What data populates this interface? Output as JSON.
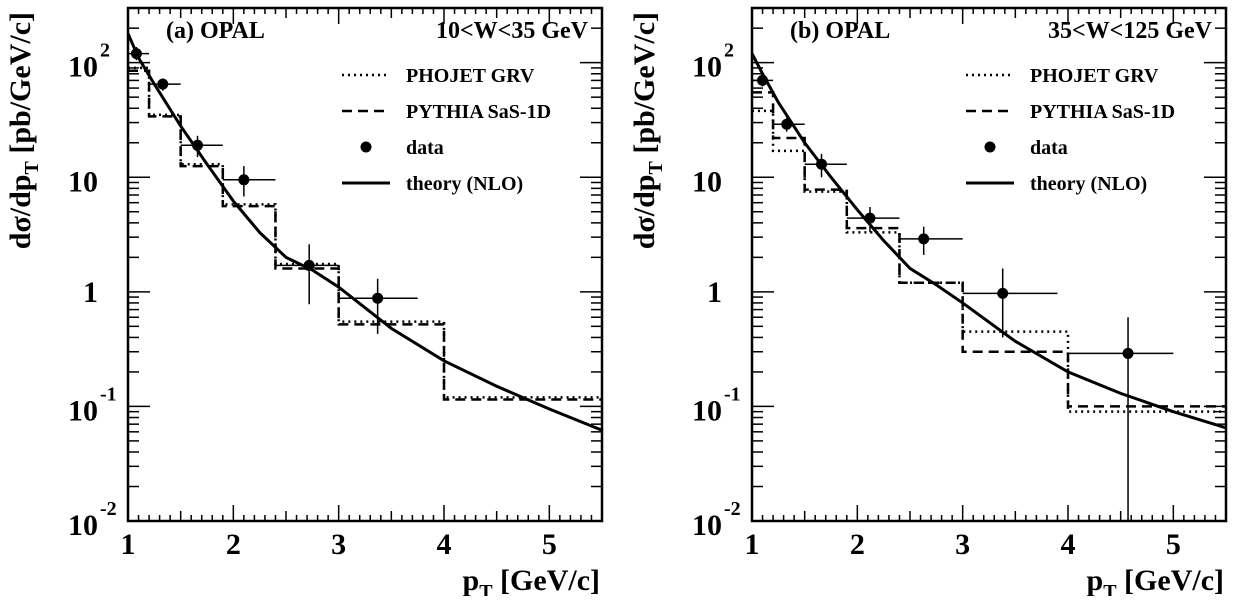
{
  "chart_data": [
    {
      "type": "line",
      "panel_label": "(a) OPAL",
      "range_label": "10<W<35 GeV",
      "ylabel": "dσ/dp",
      "ylabel_sub": "T",
      "ylabel_unit": " [pb/GeV/c]",
      "xlabel": "p",
      "xlabel_sub": "T",
      "xlabel_unit": " [GeV/c]",
      "xlim": [
        1,
        5.5
      ],
      "ylim": [
        0.01,
        300
      ],
      "yscale": "log",
      "x_ticks": [
        {
          "value": 1,
          "label": "1"
        },
        {
          "value": 2,
          "label": "2"
        },
        {
          "value": 3,
          "label": "3"
        },
        {
          "value": 4,
          "label": "4"
        },
        {
          "value": 5,
          "label": "5"
        }
      ],
      "y_ticks": [
        {
          "value": 100,
          "base": "10",
          "exp": "2"
        },
        {
          "value": 10,
          "base": "10",
          "exp": ""
        },
        {
          "value": 1,
          "base": "1",
          "exp": ""
        },
        {
          "value": 0.1,
          "base": "10",
          "exp": "-1"
        },
        {
          "value": 0.01,
          "base": "10",
          "exp": "-2"
        }
      ],
      "legend": {
        "position": "top-right",
        "entries": [
          "PHOJET GRV",
          "PYTHIA SaS-1D",
          "data",
          "theory (NLO)"
        ]
      },
      "series": [
        {
          "name": "PHOJET GRV",
          "style": "dotted",
          "kind": "histogram",
          "bin_edges": [
            1,
            1.2,
            1.5,
            1.9,
            2.4,
            3,
            4,
            5.5
          ],
          "values": [
            90,
            35,
            13,
            5.8,
            1.75,
            0.55,
            0.12
          ]
        },
        {
          "name": "PYTHIA SaS-1D",
          "style": "dashed",
          "kind": "histogram",
          "bin_edges": [
            1,
            1.2,
            1.5,
            1.9,
            2.4,
            3,
            4,
            5.5
          ],
          "values": [
            85,
            34,
            12.5,
            5.6,
            1.6,
            0.52,
            0.115
          ]
        },
        {
          "name": "data",
          "style": "markers",
          "kind": "points",
          "x": [
            1.08,
            1.33,
            1.66,
            2.1,
            2.72,
            3.37
          ],
          "y": [
            120,
            65,
            19,
            9.5,
            1.7,
            0.88
          ],
          "y_low": [
            105,
            57,
            15,
            6.8,
            0.78,
            0.43
          ],
          "y_high": [
            137,
            73,
            23,
            12.5,
            2.6,
            1.3
          ],
          "x_low": [
            1.0,
            1.2,
            1.5,
            1.9,
            2.4,
            3.0
          ],
          "x_high": [
            1.2,
            1.5,
            1.9,
            2.4,
            3.0,
            3.75
          ]
        },
        {
          "name": "theory (NLO)",
          "style": "solid",
          "kind": "curve",
          "x": [
            1.0,
            1.1,
            1.25,
            1.5,
            1.75,
            2.0,
            2.25,
            2.5,
            2.75,
            3.0,
            3.5,
            4.0,
            4.5,
            5.0,
            5.5
          ],
          "y": [
            180,
            110,
            65,
            28,
            13,
            6.2,
            3.3,
            2.0,
            1.55,
            1.1,
            0.48,
            0.25,
            0.15,
            0.095,
            0.062
          ]
        }
      ]
    },
    {
      "type": "line",
      "panel_label": "(b) OPAL",
      "range_label": "35<W<125 GeV",
      "ylabel": "dσ/dp",
      "ylabel_sub": "T",
      "ylabel_unit": " [pb/GeV/c]",
      "xlabel": "p",
      "xlabel_sub": "T",
      "xlabel_unit": " [GeV/c]",
      "xlim": [
        1,
        5.5
      ],
      "ylim": [
        0.01,
        300
      ],
      "yscale": "log",
      "x_ticks": [
        {
          "value": 1,
          "label": "1"
        },
        {
          "value": 2,
          "label": "2"
        },
        {
          "value": 3,
          "label": "3"
        },
        {
          "value": 4,
          "label": "4"
        },
        {
          "value": 5,
          "label": "5"
        }
      ],
      "y_ticks": [
        {
          "value": 100,
          "base": "10",
          "exp": "2"
        },
        {
          "value": 10,
          "base": "10",
          "exp": ""
        },
        {
          "value": 1,
          "base": "1",
          "exp": ""
        },
        {
          "value": 0.1,
          "base": "10",
          "exp": "-1"
        },
        {
          "value": 0.01,
          "base": "10",
          "exp": "-2"
        }
      ],
      "legend": {
        "position": "top-right",
        "entries": [
          "PHOJET GRV",
          "PYTHIA SaS-1D",
          "data",
          "theory (NLO)"
        ]
      },
      "series": [
        {
          "name": "PHOJET GRV",
          "style": "dotted",
          "kind": "histogram",
          "bin_edges": [
            1,
            1.2,
            1.5,
            1.9,
            2.4,
            3,
            4,
            5.5
          ],
          "values": [
            38,
            17,
            7.5,
            3.3,
            1.2,
            0.45,
            0.09
          ]
        },
        {
          "name": "PYTHIA SaS-1D",
          "style": "dashed",
          "kind": "histogram",
          "bin_edges": [
            1,
            1.2,
            1.5,
            1.9,
            2.4,
            3,
            4,
            5.5
          ],
          "values": [
            55,
            22,
            7.8,
            3.6,
            1.2,
            0.3,
            0.1
          ]
        },
        {
          "name": "data",
          "style": "markers",
          "kind": "points",
          "x": [
            1.1,
            1.33,
            1.66,
            2.12,
            2.63,
            3.38,
            4.57
          ],
          "y": [
            70,
            29,
            13,
            4.4,
            2.9,
            0.97,
            0.29
          ],
          "y_low": [
            62,
            25,
            10,
            3.3,
            2.1,
            0.4,
            0.01
          ],
          "y_high": [
            78,
            33,
            16,
            5.5,
            3.7,
            1.6,
            0.6
          ],
          "x_low": [
            1.0,
            1.2,
            1.5,
            1.9,
            2.4,
            3.0,
            4.0
          ],
          "x_high": [
            1.2,
            1.5,
            1.9,
            2.4,
            3.0,
            3.9,
            5.0
          ]
        },
        {
          "name": "theory (NLO)",
          "style": "solid",
          "kind": "curve",
          "x": [
            1.0,
            1.1,
            1.25,
            1.5,
            1.75,
            2.0,
            2.25,
            2.5,
            2.75,
            3.0,
            3.5,
            4.0,
            4.5,
            5.0,
            5.5
          ],
          "y": [
            120,
            80,
            45,
            20,
            10,
            5.2,
            2.8,
            1.6,
            1.15,
            0.8,
            0.37,
            0.2,
            0.13,
            0.09,
            0.065
          ]
        }
      ]
    }
  ]
}
